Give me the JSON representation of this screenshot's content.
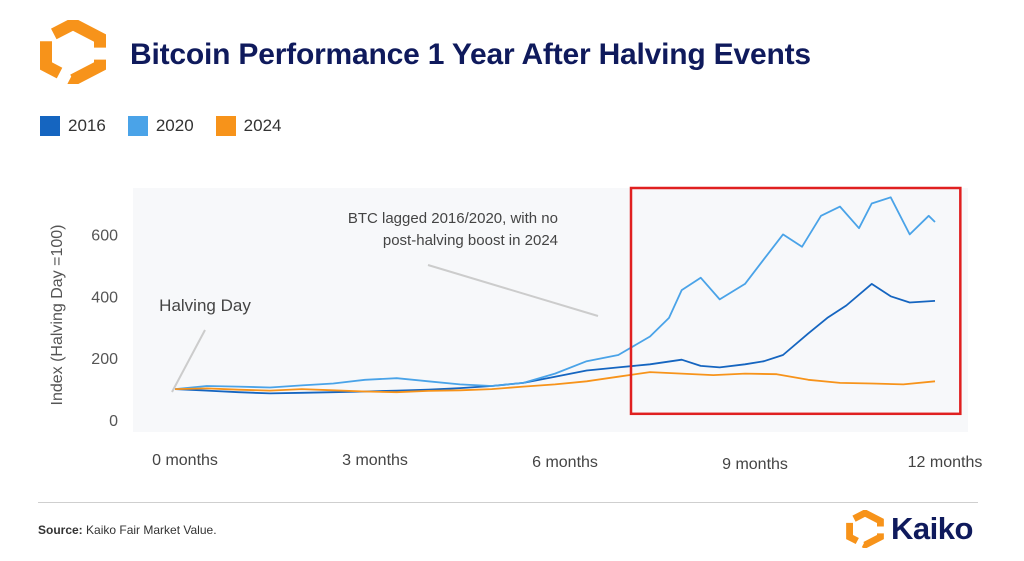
{
  "title": "Bitcoin Performance 1 Year After Halving Events",
  "legend": [
    {
      "label": "2016",
      "color": "#1565c0"
    },
    {
      "label": "2020",
      "color": "#4aa3e8"
    },
    {
      "label": "2024",
      "color": "#f7931a"
    }
  ],
  "footer": {
    "source_label": "Source:",
    "source_text": "Kaiko Fair Market Value."
  },
  "brand": {
    "name": "Kaiko",
    "accent": "#f7931a"
  },
  "chart_data": {
    "type": "line",
    "title": "Bitcoin Performance 1 Year After Halving Events",
    "ylabel": "Index (Halving Day =100)",
    "xlabel": "",
    "x_unit": "months after halving",
    "xlim": [
      0,
      12
    ],
    "ylim": [
      0,
      750
    ],
    "yticks": [
      0,
      200,
      400,
      600
    ],
    "xticks": [
      {
        "value": 0,
        "label": "0 months"
      },
      {
        "value": 3,
        "label": "3 months"
      },
      {
        "value": 6,
        "label": "6 months"
      },
      {
        "value": 9,
        "label": "9 months"
      },
      {
        "value": 12,
        "label": "12 months"
      }
    ],
    "grid": false,
    "series": [
      {
        "name": "2016",
        "color": "#1565c0",
        "x": [
          0,
          0.5,
          1,
          1.5,
          2,
          2.5,
          3,
          3.5,
          4,
          4.5,
          5,
          5.5,
          6,
          6.5,
          7,
          7.5,
          8,
          8.3,
          8.6,
          9,
          9.3,
          9.6,
          10,
          10.3,
          10.6,
          11,
          11.3,
          11.6,
          12
        ],
        "y": [
          100,
          95,
          90,
          86,
          88,
          90,
          92,
          95,
          98,
          103,
          110,
          120,
          140,
          160,
          170,
          180,
          195,
          175,
          170,
          180,
          190,
          210,
          280,
          330,
          370,
          440,
          400,
          380,
          385
        ]
      },
      {
        "name": "2020",
        "color": "#4aa3e8",
        "x": [
          0,
          0.5,
          1,
          1.5,
          2,
          2.5,
          3,
          3.5,
          4,
          4.5,
          5,
          5.5,
          6,
          6.5,
          7,
          7.5,
          7.8,
          8,
          8.3,
          8.6,
          9,
          9.3,
          9.6,
          9.9,
          10.2,
          10.5,
          10.8,
          11,
          11.3,
          11.6,
          11.9,
          12
        ],
        "y": [
          100,
          110,
          108,
          105,
          112,
          118,
          130,
          135,
          125,
          115,
          110,
          120,
          150,
          190,
          210,
          270,
          330,
          420,
          460,
          390,
          440,
          520,
          600,
          560,
          660,
          690,
          620,
          700,
          720,
          600,
          660,
          640
        ]
      },
      {
        "name": "2024",
        "color": "#f7931a",
        "x": [
          0,
          0.5,
          1,
          1.5,
          2,
          2.5,
          3,
          3.5,
          4,
          4.5,
          5,
          5.5,
          6,
          6.5,
          7,
          7.5,
          8,
          8.5,
          9,
          9.5,
          10,
          10.5,
          11,
          11.5,
          12
        ],
        "y": [
          100,
          102,
          98,
          95,
          100,
          96,
          92,
          90,
          94,
          96,
          100,
          108,
          115,
          125,
          140,
          155,
          150,
          145,
          150,
          148,
          130,
          120,
          118,
          115,
          125
        ]
      }
    ],
    "annotations": [
      {
        "text": [
          "BTC lagged 2016/2020, with no",
          "post-halving boost in 2024"
        ],
        "x": 6.4,
        "y": 600
      },
      {
        "text": [
          "Halving Day"
        ],
        "x": 0.5,
        "y": 370
      }
    ],
    "highlight_box": {
      "x_start": 7.2,
      "x_end": 12.4,
      "y_start": 20,
      "y_end": 750,
      "color": "#e02020"
    }
  }
}
